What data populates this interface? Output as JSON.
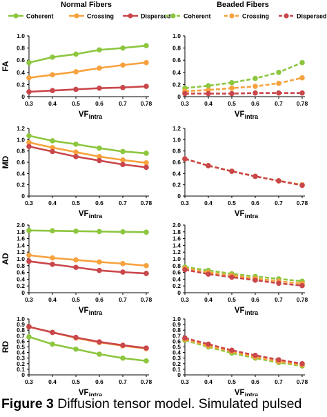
{
  "column_titles": [
    "Normal Fibers",
    "Beaded Fibers"
  ],
  "colors": {
    "Coherent": "#8dc63f",
    "Crossing": "#f7a23e",
    "Dispersed": "#c9474b"
  },
  "caption": {
    "label": "Figure 3",
    "text": "Diffusion tensor model. Simulated pulsed"
  },
  "chart_data": [
    {
      "type": "line",
      "panel": "Normal Fibers FA",
      "ylabel": "FA",
      "xlabel": "VF_intra",
      "categories": [
        "0.3",
        "0.4",
        "0.5",
        "0.6",
        "0.7",
        "0.78"
      ],
      "ylim": [
        0,
        1.0
      ],
      "yticks": [
        "0",
        "0.2",
        "0.4",
        "0.6",
        "0.8",
        "1.0"
      ],
      "legend": "top",
      "line_style": "solid",
      "series": [
        {
          "name": "Coherent",
          "values": [
            0.56,
            0.65,
            0.7,
            0.77,
            0.8,
            0.84
          ]
        },
        {
          "name": "Crossing",
          "values": [
            0.31,
            0.36,
            0.41,
            0.47,
            0.52,
            0.56
          ]
        },
        {
          "name": "Dispersed",
          "values": [
            0.08,
            0.1,
            0.12,
            0.14,
            0.15,
            0.17
          ]
        }
      ]
    },
    {
      "type": "line",
      "panel": "Beaded Fibers FA",
      "ylabel": "",
      "xlabel": "VF_intra",
      "categories": [
        "0.3",
        "0.4",
        "0.5",
        "0.6",
        "0.7",
        "0.78"
      ],
      "ylim": [
        0,
        1.0
      ],
      "yticks": [
        "0",
        "0.2",
        "0.4",
        "0.6",
        "0.8",
        "1.0"
      ],
      "legend": "top",
      "line_style": "dashed",
      "series": [
        {
          "name": "Coherent",
          "values": [
            0.14,
            0.18,
            0.23,
            0.3,
            0.4,
            0.56
          ]
        },
        {
          "name": "Crossing",
          "values": [
            0.09,
            0.11,
            0.14,
            0.17,
            0.22,
            0.31
          ]
        },
        {
          "name": "Dispersed",
          "values": [
            0.05,
            0.05,
            0.05,
            0.06,
            0.06,
            0.06
          ]
        }
      ]
    },
    {
      "type": "line",
      "panel": "Normal Fibers MD",
      "ylabel": "MD",
      "xlabel": "VF_intra",
      "categories": [
        "0.3",
        "0.4",
        "0.5",
        "0.6",
        "0.7",
        "0.78"
      ],
      "ylim": [
        0,
        1.2
      ],
      "yticks": [
        "0",
        "0.2",
        "0.4",
        "0.6",
        "0.8",
        "1.0",
        "1.2"
      ],
      "line_style": "solid",
      "series": [
        {
          "name": "Coherent",
          "values": [
            1.07,
            0.98,
            0.92,
            0.85,
            0.79,
            0.76
          ]
        },
        {
          "name": "Crossing",
          "values": [
            0.95,
            0.86,
            0.78,
            0.7,
            0.64,
            0.59
          ]
        },
        {
          "name": "Dispersed",
          "values": [
            0.88,
            0.79,
            0.7,
            0.63,
            0.56,
            0.51
          ]
        }
      ]
    },
    {
      "type": "line",
      "panel": "Beaded Fibers MD",
      "ylabel": "",
      "xlabel": "VF_intra",
      "categories": [
        "0.3",
        "0.4",
        "0.5",
        "0.6",
        "0.7",
        "0.78"
      ],
      "ylim": [
        0,
        1.2
      ],
      "yticks": [
        "0",
        "0.2",
        "0.4",
        "0.6",
        "0.8",
        "1.0",
        "1.2"
      ],
      "line_style": "dashed",
      "series": [
        {
          "name": "Coherent",
          "values": [
            0.66,
            0.54,
            0.44,
            0.35,
            0.27,
            0.2
          ]
        },
        {
          "name": "Crossing",
          "values": [
            0.66,
            0.54,
            0.44,
            0.35,
            0.27,
            0.2
          ]
        },
        {
          "name": "Dispersed",
          "values": [
            0.66,
            0.54,
            0.44,
            0.35,
            0.27,
            0.19
          ]
        }
      ]
    },
    {
      "type": "line",
      "panel": "Normal Fibers AD",
      "ylabel": "AD",
      "xlabel": "VF_intra",
      "categories": [
        "0.3",
        "0.4",
        "0.5",
        "0.6",
        "0.7",
        "0.78"
      ],
      "ylim": [
        0,
        2.0
      ],
      "yticks": [
        "0",
        "0.2",
        "0.4",
        "0.6",
        "0.8",
        "1.0",
        "1.2",
        "1.4",
        "1.6",
        "1.8",
        "2.0"
      ],
      "line_style": "solid",
      "series": [
        {
          "name": "Coherent",
          "values": [
            1.84,
            1.83,
            1.82,
            1.81,
            1.8,
            1.79
          ]
        },
        {
          "name": "Crossing",
          "values": [
            1.11,
            1.03,
            0.97,
            0.91,
            0.86,
            0.8
          ]
        },
        {
          "name": "Dispersed",
          "values": [
            0.93,
            0.84,
            0.75,
            0.66,
            0.61,
            0.57
          ]
        }
      ]
    },
    {
      "type": "line",
      "panel": "Beaded Fibers AD",
      "ylabel": "",
      "xlabel": "VF_intra",
      "categories": [
        "0.3",
        "0.4",
        "0.5",
        "0.6",
        "0.7",
        "0.78"
      ],
      "ylim": [
        0,
        2.0
      ],
      "yticks": [
        "0",
        "0.2",
        "0.4",
        "0.6",
        "0.8",
        "1.0",
        "1.2",
        "1.4",
        "1.6",
        "1.8",
        "2.0"
      ],
      "line_style": "dashed",
      "series": [
        {
          "name": "Coherent",
          "values": [
            0.76,
            0.66,
            0.56,
            0.48,
            0.41,
            0.34
          ]
        },
        {
          "name": "Crossing",
          "values": [
            0.72,
            0.6,
            0.51,
            0.42,
            0.34,
            0.27
          ]
        },
        {
          "name": "Dispersed",
          "values": [
            0.68,
            0.55,
            0.46,
            0.37,
            0.28,
            0.21
          ]
        }
      ]
    },
    {
      "type": "line",
      "panel": "Normal Fibers RD",
      "ylabel": "RD",
      "xlabel": "VF_intra",
      "categories": [
        "0.3",
        "0.4",
        "0.5",
        "0.6",
        "0.7",
        "0.78"
      ],
      "ylim": [
        0,
        1.0
      ],
      "yticks": [
        "0",
        "0.1",
        "0.2",
        "0.3",
        "0.4",
        "0.5",
        "0.6",
        "0.7",
        "0.8",
        "0.9",
        "1.0"
      ],
      "line_style": "solid",
      "series": [
        {
          "name": "Coherent",
          "values": [
            0.68,
            0.55,
            0.46,
            0.37,
            0.3,
            0.25
          ]
        },
        {
          "name": "Crossing",
          "values": [
            0.86,
            0.76,
            0.66,
            0.58,
            0.52,
            0.47
          ]
        },
        {
          "name": "Dispersed",
          "values": [
            0.86,
            0.76,
            0.67,
            0.59,
            0.53,
            0.48
          ]
        }
      ]
    },
    {
      "type": "line",
      "panel": "Beaded Fibers RD",
      "ylabel": "",
      "xlabel": "VF_intra",
      "categories": [
        "0.3",
        "0.4",
        "0.5",
        "0.6",
        "0.7",
        "0.78"
      ],
      "ylim": [
        0,
        1.0
      ],
      "yticks": [
        "0",
        "0.1",
        "0.2",
        "0.3",
        "0.4",
        "0.5",
        "0.6",
        "0.7",
        "0.8",
        "0.9",
        "1.0"
      ],
      "line_style": "dashed",
      "series": [
        {
          "name": "Coherent",
          "values": [
            0.62,
            0.5,
            0.39,
            0.3,
            0.22,
            0.16
          ]
        },
        {
          "name": "Crossing",
          "values": [
            0.64,
            0.52,
            0.42,
            0.32,
            0.24,
            0.18
          ]
        },
        {
          "name": "Dispersed",
          "values": [
            0.66,
            0.55,
            0.44,
            0.35,
            0.27,
            0.2
          ]
        }
      ]
    }
  ]
}
